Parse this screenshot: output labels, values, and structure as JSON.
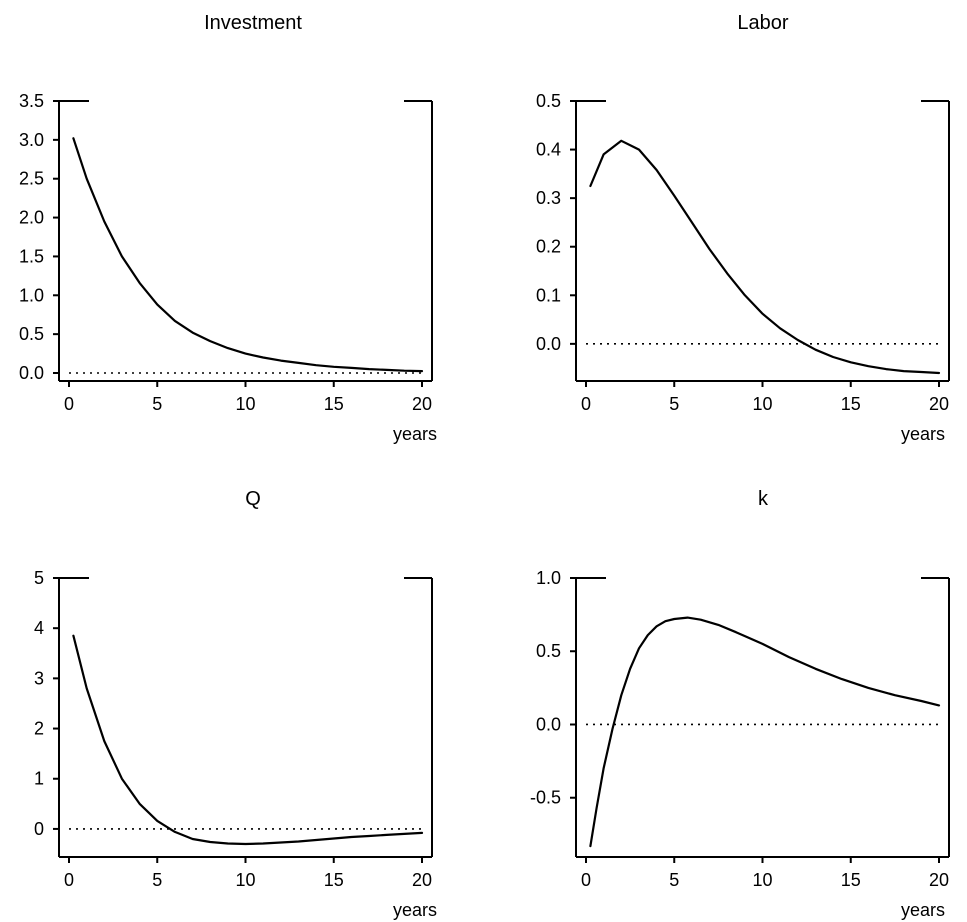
{
  "chart_data": [
    {
      "type": "line",
      "title": "Investment",
      "xlabel": "years",
      "ylabel": "",
      "xlim": [
        0,
        20
      ],
      "ylim": [
        0,
        3.5
      ],
      "xticks": [
        "0",
        "5",
        "10",
        "15",
        "20"
      ],
      "yticks": [
        "0.0",
        "0.5",
        "1.0",
        "1.5",
        "2.0",
        "2.5",
        "3.0",
        "3.5"
      ],
      "zero_line": "dotted",
      "grid": false,
      "series": [
        {
          "x": [
            0.25,
            1,
            2,
            3,
            4,
            5,
            6,
            7,
            8,
            9,
            10,
            11,
            12,
            13,
            14,
            15,
            16,
            17,
            18,
            19,
            20
          ],
          "values": [
            3.02,
            2.5,
            1.95,
            1.5,
            1.16,
            0.88,
            0.67,
            0.52,
            0.41,
            0.32,
            0.25,
            0.2,
            0.16,
            0.13,
            0.1,
            0.08,
            0.065,
            0.05,
            0.04,
            0.03,
            0.025
          ]
        }
      ]
    },
    {
      "type": "line",
      "title": "Labor",
      "xlabel": "years",
      "ylabel": "",
      "xlim": [
        0,
        20
      ],
      "ylim": [
        -0.06,
        0.5
      ],
      "xticks": [
        "0",
        "5",
        "10",
        "15",
        "20"
      ],
      "yticks": [
        "0.0",
        "0.1",
        "0.2",
        "0.3",
        "0.4",
        "0.5"
      ],
      "zero_line": "dotted",
      "grid": false,
      "series": [
        {
          "x": [
            0.25,
            1,
            2,
            3,
            4,
            5,
            6,
            7,
            8,
            9,
            10,
            11,
            12,
            13,
            14,
            15,
            16,
            17,
            18,
            19,
            20
          ],
          "values": [
            0.325,
            0.39,
            0.418,
            0.4,
            0.358,
            0.305,
            0.25,
            0.195,
            0.145,
            0.1,
            0.062,
            0.032,
            0.008,
            -0.012,
            -0.027,
            -0.038,
            -0.046,
            -0.052,
            -0.056,
            -0.058,
            -0.06
          ]
        }
      ]
    },
    {
      "type": "line",
      "title": "Q",
      "xlabel": "years",
      "ylabel": "",
      "xlim": [
        0,
        20
      ],
      "ylim": [
        -0.4,
        5
      ],
      "xticks": [
        "0",
        "5",
        "10",
        "15",
        "20"
      ],
      "yticks": [
        "0",
        "1",
        "2",
        "3",
        "4",
        "5"
      ],
      "zero_line": "dotted",
      "grid": false,
      "series": [
        {
          "x": [
            0.25,
            1,
            2,
            3,
            4,
            5,
            6,
            7,
            8,
            9,
            10,
            11,
            12,
            13,
            14,
            15,
            16,
            17,
            18,
            19,
            20
          ],
          "values": [
            3.85,
            2.8,
            1.75,
            1.0,
            0.5,
            0.16,
            -0.06,
            -0.2,
            -0.26,
            -0.29,
            -0.3,
            -0.29,
            -0.27,
            -0.25,
            -0.22,
            -0.19,
            -0.16,
            -0.14,
            -0.12,
            -0.1,
            -0.08
          ]
        }
      ]
    },
    {
      "type": "line",
      "title": "k",
      "xlabel": "years",
      "ylabel": "",
      "xlim": [
        0,
        20
      ],
      "ylim": [
        -0.85,
        1.0
      ],
      "xticks": [
        "0",
        "5",
        "10",
        "15",
        "20"
      ],
      "yticks": [
        "-0.5",
        "0.0",
        "0.5",
        "1.0"
      ],
      "zero_line": "dotted",
      "grid": false,
      "series": [
        {
          "x": [
            0.25,
            0.6,
            1,
            1.5,
            2,
            2.5,
            3,
            3.5,
            4,
            4.5,
            5,
            5.75,
            6.5,
            7.5,
            8.5,
            10,
            11.5,
            13,
            14.5,
            16,
            17.5,
            19,
            20
          ],
          "values": [
            -0.83,
            -0.57,
            -0.3,
            -0.03,
            0.2,
            0.38,
            0.52,
            0.61,
            0.67,
            0.705,
            0.72,
            0.73,
            0.715,
            0.68,
            0.63,
            0.55,
            0.46,
            0.38,
            0.31,
            0.25,
            0.2,
            0.16,
            0.13
          ]
        }
      ]
    }
  ]
}
